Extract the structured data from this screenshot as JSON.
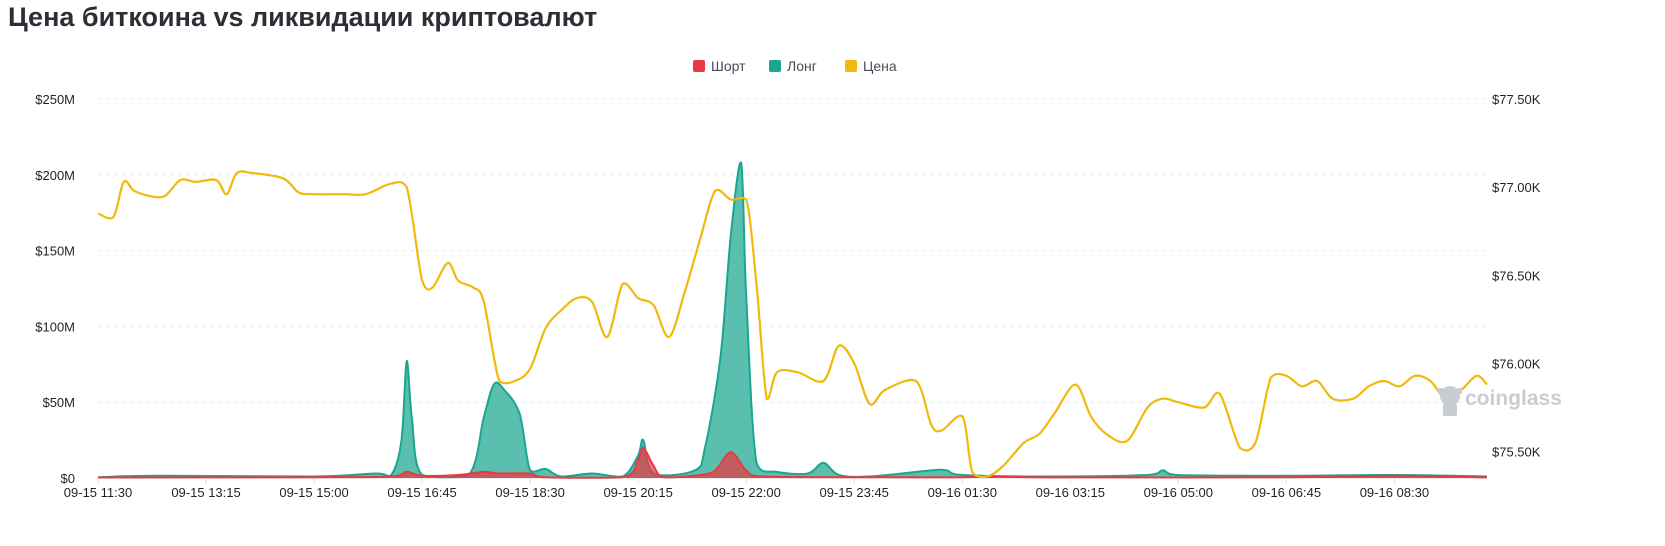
{
  "page": {
    "title": "Цена биткоина vs ликвидации криптовалют",
    "watermark": "coinglass"
  },
  "chart_data": {
    "type": "area",
    "title": "Цена биткоина vs ликвидации криптовалют",
    "legend_position": "top-center",
    "grid": true,
    "x_tick_labels": [
      "09-15 11:30",
      "09-15 13:15",
      "09-15 15:00",
      "09-15 16:45",
      "09-15 18:30",
      "09-15 20:15",
      "09-15 22:00",
      "09-15 23:45",
      "09-16 01:30",
      "09-16 03:15",
      "09-16 05:00",
      "09-16 06:45",
      "09-16 08:30"
    ],
    "x_range": [
      "09-15 11:30",
      "09-16 10:00"
    ],
    "y_left": {
      "ticks": [
        "$0",
        "$50M",
        "$100M",
        "$150M",
        "$200M",
        "$250M"
      ],
      "range": [
        0,
        250
      ]
    },
    "y_right": {
      "ticks": [
        "$75.50K",
        "$76.00K",
        "$76.50K",
        "$77.00K",
        "$77.50K"
      ],
      "range": [
        75350,
        77500
      ]
    },
    "series": [
      {
        "name": "Шорт",
        "color": "#ea3943",
        "axis": "left",
        "unit": "$M",
        "points": [
          [
            "09-15 11:30",
            0.3
          ],
          [
            "09-15 15:00",
            0.5
          ],
          [
            "09-15 16:15",
            1
          ],
          [
            "09-15 16:30",
            4
          ],
          [
            "09-15 16:45",
            1.5
          ],
          [
            "09-15 17:20",
            2
          ],
          [
            "09-15 17:45",
            4
          ],
          [
            "09-15 18:00",
            3
          ],
          [
            "09-15 18:30",
            3
          ],
          [
            "09-15 18:45",
            0.5
          ],
          [
            "09-15 20:00",
            0.5
          ],
          [
            "09-15 20:15",
            12
          ],
          [
            "09-15 20:20",
            20
          ],
          [
            "09-15 20:30",
            8
          ],
          [
            "09-15 20:40",
            0.5
          ],
          [
            "09-15 21:15",
            2
          ],
          [
            "09-15 21:30",
            5
          ],
          [
            "09-15 21:45",
            17
          ],
          [
            "09-15 22:00",
            5
          ],
          [
            "09-15 22:15",
            1
          ],
          [
            "09-16 00:30",
            0.5
          ],
          [
            "09-16 01:30",
            0.5
          ],
          [
            "09-16 02:00",
            1
          ],
          [
            "09-16 03:00",
            0.4
          ],
          [
            "09-16 06:45",
            0.5
          ],
          [
            "09-16 08:30",
            1.5
          ],
          [
            "09-16 10:00",
            0.4
          ]
        ]
      },
      {
        "name": "Лонг",
        "color": "#1aa68f",
        "axis": "left",
        "unit": "$M",
        "points": [
          [
            "09-15 11:30",
            0.5
          ],
          [
            "09-15 12:30",
            1.5
          ],
          [
            "09-15 15:00",
            1
          ],
          [
            "09-15 16:00",
            3
          ],
          [
            "09-15 16:15",
            2
          ],
          [
            "09-15 16:25",
            25
          ],
          [
            "09-15 16:30",
            77
          ],
          [
            "09-15 16:35",
            40
          ],
          [
            "09-15 16:45",
            2
          ],
          [
            "09-15 17:30",
            2
          ],
          [
            "09-15 17:45",
            40
          ],
          [
            "09-15 17:55",
            62
          ],
          [
            "09-15 18:05",
            58
          ],
          [
            "09-15 18:20",
            42
          ],
          [
            "09-15 18:30",
            5
          ],
          [
            "09-15 18:45",
            6
          ],
          [
            "09-15 19:00",
            1
          ],
          [
            "09-15 19:30",
            3
          ],
          [
            "09-15 20:00",
            1
          ],
          [
            "09-15 20:15",
            15
          ],
          [
            "09-15 20:20",
            25
          ],
          [
            "09-15 20:30",
            3
          ],
          [
            "09-15 21:10",
            5
          ],
          [
            "09-15 21:20",
            20
          ],
          [
            "09-15 21:35",
            80
          ],
          [
            "09-15 21:45",
            160
          ],
          [
            "09-15 21:55",
            208
          ],
          [
            "09-15 22:00",
            120
          ],
          [
            "09-15 22:10",
            10
          ],
          [
            "09-15 22:30",
            4
          ],
          [
            "09-15 23:00",
            3
          ],
          [
            "09-15 23:15",
            10
          ],
          [
            "09-15 23:30",
            2
          ],
          [
            "09-16 00:00",
            1
          ],
          [
            "09-16 01:00",
            5
          ],
          [
            "09-16 01:15",
            5
          ],
          [
            "09-16 01:30",
            2
          ],
          [
            "09-16 03:00",
            1
          ],
          [
            "09-16 04:30",
            2
          ],
          [
            "09-16 04:45",
            5
          ],
          [
            "09-16 05:00",
            2
          ],
          [
            "09-16 06:45",
            1.5
          ],
          [
            "09-16 08:30",
            2
          ],
          [
            "09-16 10:00",
            1
          ]
        ]
      },
      {
        "name": "Цена",
        "color": "#f0b90b",
        "axis": "right",
        "unit": "$",
        "points": [
          [
            "09-15 11:30",
            76.85
          ],
          [
            "09-15 11:45",
            76.83
          ],
          [
            "09-15 11:55",
            77.03
          ],
          [
            "09-15 12:05",
            76.98
          ],
          [
            "09-15 12:20",
            76.95
          ],
          [
            "09-15 12:35",
            76.95
          ],
          [
            "09-15 12:50",
            77.04
          ],
          [
            "09-15 13:05",
            77.03
          ],
          [
            "09-15 13:25",
            77.04
          ],
          [
            "09-15 13:35",
            76.96
          ],
          [
            "09-15 13:45",
            77.08
          ],
          [
            "09-15 14:00",
            77.08
          ],
          [
            "09-15 14:30",
            77.05
          ],
          [
            "09-15 14:45",
            76.97
          ],
          [
            "09-15 15:00",
            76.96
          ],
          [
            "09-15 15:30",
            76.96
          ],
          [
            "09-15 15:50",
            76.96
          ],
          [
            "09-15 16:15",
            77.02
          ],
          [
            "09-15 16:30",
            77.0
          ],
          [
            "09-15 16:45",
            76.47
          ],
          [
            "09-15 16:55",
            76.43
          ],
          [
            "09-15 17:10",
            76.57
          ],
          [
            "09-15 17:20",
            76.47
          ],
          [
            "09-15 17:35",
            76.43
          ],
          [
            "09-15 17:45",
            76.35
          ],
          [
            "09-15 18:00",
            75.9
          ],
          [
            "09-15 18:15",
            75.9
          ],
          [
            "09-15 18:30",
            75.97
          ],
          [
            "09-15 18:45",
            76.2
          ],
          [
            "09-15 19:00",
            76.3
          ],
          [
            "09-15 19:15",
            76.37
          ],
          [
            "09-15 19:30",
            76.35
          ],
          [
            "09-15 19:45",
            76.15
          ],
          [
            "09-15 20:00",
            76.45
          ],
          [
            "09-15 20:15",
            76.37
          ],
          [
            "09-15 20:30",
            76.33
          ],
          [
            "09-15 20:45",
            76.15
          ],
          [
            "09-15 21:00",
            76.4
          ],
          [
            "09-15 21:15",
            76.7
          ],
          [
            "09-15 21:30",
            76.98
          ],
          [
            "09-15 21:45",
            76.93
          ],
          [
            "09-15 22:00",
            76.93
          ],
          [
            "09-15 22:10",
            76.45
          ],
          [
            "09-15 22:20",
            75.8
          ],
          [
            "09-15 22:30",
            75.95
          ],
          [
            "09-15 22:50",
            75.95
          ],
          [
            "09-15 23:15",
            75.9
          ],
          [
            "09-15 23:30",
            76.1
          ],
          [
            "09-15 23:45",
            76.0
          ],
          [
            "09-16 00:00",
            75.77
          ],
          [
            "09-16 00:15",
            75.85
          ],
          [
            "09-16 00:45",
            75.9
          ],
          [
            "09-16 01:00",
            75.65
          ],
          [
            "09-16 01:10",
            75.62
          ],
          [
            "09-16 01:30",
            75.7
          ],
          [
            "09-16 01:40",
            75.38
          ],
          [
            "09-16 01:55",
            75.36
          ],
          [
            "09-16 02:10",
            75.42
          ],
          [
            "09-16 02:30",
            75.55
          ],
          [
            "09-16 02:45",
            75.6
          ],
          [
            "09-16 03:00",
            75.72
          ],
          [
            "09-16 03:20",
            75.88
          ],
          [
            "09-16 03:35",
            75.7
          ],
          [
            "09-16 03:50",
            75.6
          ],
          [
            "09-16 04:10",
            75.56
          ],
          [
            "09-16 04:30",
            75.75
          ],
          [
            "09-16 04:45",
            75.8
          ],
          [
            "09-16 05:00",
            75.78
          ],
          [
            "09-16 05:25",
            75.75
          ],
          [
            "09-16 05:40",
            75.83
          ],
          [
            "09-16 06:00",
            75.52
          ],
          [
            "09-16 06:15",
            75.55
          ],
          [
            "09-16 06:30",
            75.92
          ],
          [
            "09-16 06:45",
            75.93
          ],
          [
            "09-16 07:00",
            75.87
          ],
          [
            "09-16 07:15",
            75.9
          ],
          [
            "09-16 07:30",
            75.8
          ],
          [
            "09-16 07:50",
            75.8
          ],
          [
            "09-16 08:05",
            75.87
          ],
          [
            "09-16 08:20",
            75.9
          ],
          [
            "09-16 08:35",
            75.87
          ],
          [
            "09-16 08:50",
            75.93
          ],
          [
            "09-16 09:05",
            75.9
          ],
          [
            "09-16 09:20",
            75.8
          ],
          [
            "09-16 09:35",
            75.85
          ],
          [
            "09-16 09:50",
            75.93
          ],
          [
            "09-16 10:00",
            75.88
          ]
        ]
      }
    ]
  }
}
